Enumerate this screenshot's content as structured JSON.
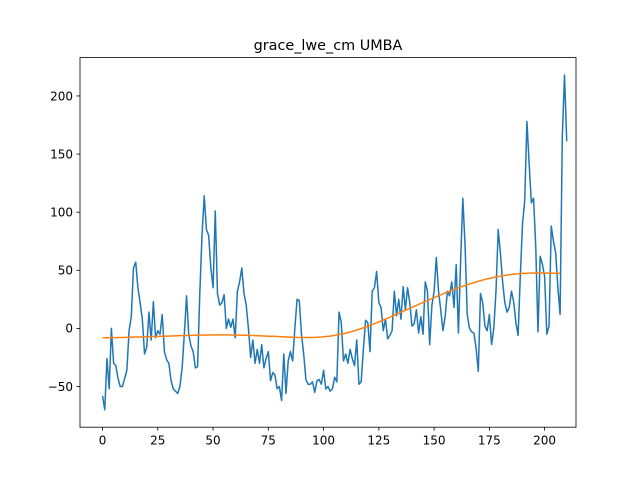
{
  "chart_data": {
    "type": "line",
    "title": "grace_lwe_cm UMBA",
    "xlabel": "",
    "ylabel": "",
    "xlim": [
      -10.2,
      214.2
    ],
    "ylim": [
      -85,
      233
    ],
    "xticks": [
      0,
      25,
      50,
      75,
      100,
      125,
      150,
      175,
      200
    ],
    "yticks": [
      -50,
      0,
      50,
      100,
      150,
      200
    ],
    "grid": false,
    "series": [
      {
        "color": "#1f77b4",
        "values": [
          -58,
          -70,
          -26,
          -52,
          0,
          -30,
          -32,
          -43,
          -50,
          -50,
          -43,
          -36,
          -2,
          10,
          52,
          57,
          35,
          22,
          8,
          -22,
          -16,
          14,
          -10,
          23,
          -8,
          -2,
          -5,
          12,
          -20,
          -27,
          -30,
          -45,
          -52,
          -54,
          -56,
          -50,
          -34,
          -5,
          28,
          -5,
          -15,
          -20,
          -34,
          -33,
          30,
          80,
          114,
          85,
          80,
          52,
          35,
          101,
          30,
          20,
          22,
          29,
          0,
          8,
          1,
          8,
          -8,
          32,
          40,
          52,
          30,
          20,
          0,
          -25,
          -10,
          -30,
          -18,
          -30,
          -14,
          -34,
          -26,
          -20,
          -45,
          -38,
          -40,
          -52,
          -50,
          -62,
          -22,
          -56,
          -28,
          -20,
          -28,
          0,
          25,
          24,
          -5,
          -22,
          -44,
          -48,
          -48,
          -46,
          -55,
          -45,
          -44,
          -48,
          -36,
          -52,
          -50,
          -54,
          -52,
          -42,
          -46,
          14,
          5,
          -28,
          -22,
          -30,
          -18,
          -26,
          -32,
          -10,
          -48,
          -46,
          -18,
          7,
          5,
          -20,
          32,
          35,
          49,
          22,
          18,
          -2,
          8,
          -9,
          -6,
          -2,
          32,
          11,
          25,
          8,
          36,
          16,
          35,
          22,
          2,
          4,
          16,
          -4,
          10,
          -5,
          40,
          32,
          -14,
          20,
          32,
          61,
          32,
          16,
          -2,
          10,
          32,
          28,
          40,
          18,
          55,
          -4,
          58,
          112,
          72,
          12,
          0,
          -3,
          -4,
          -17,
          -37,
          30,
          22,
          2,
          -2,
          12,
          -14,
          0,
          32,
          85,
          65,
          40,
          22,
          14,
          18,
          32,
          23,
          5,
          -6,
          45,
          90,
          110,
          178,
          142,
          108,
          112,
          70,
          -3,
          62,
          55,
          45,
          -5,
          2,
          88,
          75,
          65,
          35,
          12,
          165,
          218,
          161
        ]
      },
      {
        "color": "#ff7f0e",
        "values": [
          -8,
          -8,
          -8,
          -8,
          -7.9,
          -7.9,
          -7.9,
          -7.8,
          -7.8,
          -7.8,
          -7.7,
          -7.7,
          -7.6,
          -7.6,
          -7.5,
          -7.5,
          -7.4,
          -7.4,
          -7.3,
          -7.3,
          -7.2,
          -7.1,
          -7.1,
          -7,
          -7,
          -6.9,
          -6.8,
          -6.8,
          -6.7,
          -6.6,
          -6.6,
          -6.5,
          -6.4,
          -6.4,
          -6.3,
          -6.2,
          -6.2,
          -6.1,
          -6.1,
          -6,
          -6,
          -5.9,
          -5.9,
          -5.8,
          -5.8,
          -5.8,
          -5.7,
          -5.7,
          -5.7,
          -5.7,
          -5.6,
          -5.6,
          -5.6,
          -5.6,
          -5.6,
          -5.6,
          -5.6,
          -5.6,
          -5.7,
          -5.7,
          -5.7,
          -5.8,
          -5.8,
          -5.8,
          -5.9,
          -5.9,
          -6,
          -6.1,
          -6.1,
          -6.2,
          -6.3,
          -6.3,
          -6.4,
          -6.5,
          -6.6,
          -6.7,
          -6.8,
          -6.8,
          -6.9,
          -7,
          -7.1,
          -7.2,
          -7.3,
          -7.4,
          -7.5,
          -7.5,
          -7.6,
          -7.7,
          -7.7,
          -7.8,
          -7.8,
          -7.8,
          -7.8,
          -7.8,
          -7.8,
          -7.8,
          -7.7,
          -7.6,
          -7.5,
          -7.4,
          -7.2,
          -7,
          -6.8,
          -6.6,
          -6.3,
          -6,
          -5.7,
          -5.3,
          -4.9,
          -4.5,
          -4.1,
          -3.6,
          -3.1,
          -2.6,
          -2,
          -1.4,
          -0.8,
          -0.2,
          0.5,
          1.2,
          1.9,
          2.6,
          3.3,
          4.1,
          4.8,
          5.6,
          6.4,
          7.2,
          8,
          8.8,
          9.6,
          10.5,
          11.3,
          12.2,
          13,
          13.9,
          14.7,
          15.6,
          16.4,
          17.3,
          18.1,
          19,
          19.8,
          20.7,
          21.5,
          22.3,
          23.2,
          24,
          24.8,
          25.7,
          26.5,
          27.3,
          28.1,
          28.9,
          29.7,
          30.5,
          31.3,
          32,
          32.8,
          33.5,
          34.2,
          34.9,
          35.6,
          36.3,
          36.9,
          37.6,
          38.2,
          38.8,
          39.4,
          40,
          40.5,
          41.1,
          41.6,
          42.1,
          42.6,
          43,
          43.4,
          43.9,
          44.3,
          44.6,
          45,
          45.3,
          45.6,
          45.9,
          46.2,
          46.4,
          46.7,
          46.9,
          47,
          47.2,
          47.3,
          47.4,
          47.5,
          47.6,
          47.6,
          47.7,
          47.7,
          47.7,
          47.7,
          47.7,
          47.7,
          47.6,
          47.6,
          47.6,
          47.5,
          47.5,
          47.5,
          47.4
        ]
      }
    ]
  }
}
